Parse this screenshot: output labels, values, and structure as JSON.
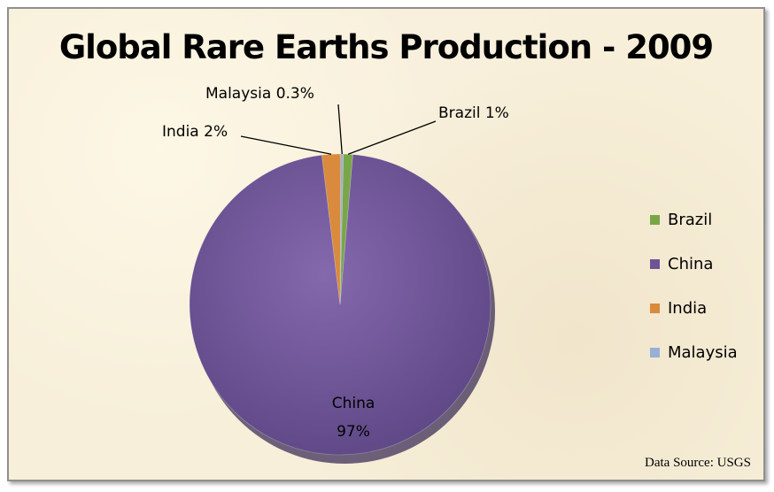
{
  "chart_data": {
    "type": "pie",
    "title": "Global Rare Earths Production - 2009",
    "slices": [
      {
        "name": "Brazil",
        "value": 1,
        "label": "Brazil 1%",
        "color": "#7aa64a"
      },
      {
        "name": "China",
        "value": 97,
        "label": "China 97%",
        "label_line1": "China",
        "label_line2": "97%",
        "color": "#6e5494"
      },
      {
        "name": "India",
        "value": 2,
        "label": "India 2%",
        "color": "#d98a3c"
      },
      {
        "name": "Malaysia",
        "value": 0.3,
        "label": "Malaysia 0.3%",
        "color": "#98b0d4"
      }
    ],
    "legend": {
      "placement": "right",
      "entries": [
        "Brazil",
        "China",
        "India",
        "Malaysia"
      ]
    }
  },
  "footer": {
    "source": "Data Source: USGS"
  }
}
